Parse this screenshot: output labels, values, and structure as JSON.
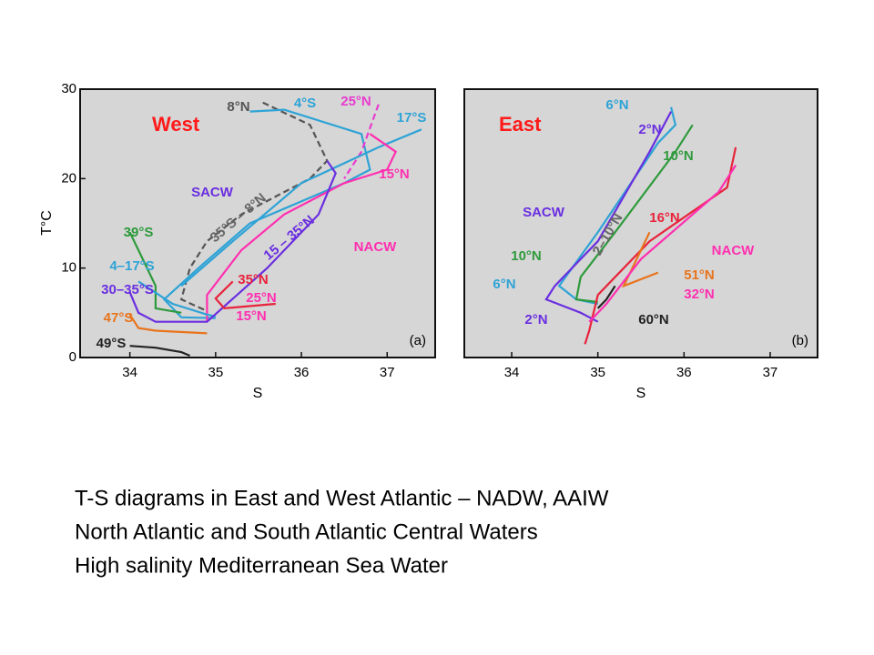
{
  "chart_data": [
    {
      "type": "line",
      "title": "West",
      "x_label": "S",
      "y_label": "T°C",
      "panel_label": "(a)",
      "xlim": [
        33.42,
        37.56
      ],
      "ylim": [
        0,
        30
      ],
      "xticks": [
        34,
        35,
        36,
        37
      ],
      "yticks": [
        0,
        10,
        20,
        30
      ],
      "series": [
        {
          "name": "8°N",
          "color": "#555555",
          "style": "dashed",
          "x": [
            35.55,
            36.1,
            36.3,
            36.1,
            35.3,
            34.9,
            34.7,
            34.6,
            34.9
          ],
          "values": [
            28.5,
            26,
            22,
            20,
            16,
            13,
            10,
            6.5,
            5.2
          ]
        },
        {
          "name": "4°S",
          "color": "#2ea3d6",
          "style": "solid",
          "x": [
            35.4,
            35.8,
            36.7,
            36.8,
            36.5,
            35.4,
            34.8,
            34.4,
            34.6,
            35.0
          ],
          "values": [
            27.5,
            27.7,
            25,
            21,
            19.5,
            15,
            10,
            6.5,
            4.5,
            4.4
          ]
        },
        {
          "name": "25°N",
          "color": "#e83ccf",
          "style": "dashed",
          "x": [
            36.9,
            36.7,
            36.5
          ],
          "values": [
            28.3,
            23,
            20
          ]
        },
        {
          "name": "17°S",
          "color": "#2ea3d6",
          "style": "solid",
          "x": [
            37.4,
            36.9,
            36.0,
            35.2,
            34.6
          ],
          "values": [
            25.5,
            23.5,
            19.5,
            13,
            8
          ]
        },
        {
          "name": "15°N",
          "color": "#ff2fb0",
          "style": "solid",
          "x": [
            36.8,
            37.1,
            37.0,
            36.5,
            35.8,
            35.3,
            34.9,
            34.9
          ],
          "values": [
            25,
            23,
            21,
            19.5,
            16,
            12,
            7,
            4
          ]
        },
        {
          "name": "39°S",
          "color": "#2e9a3c",
          "style": "solid",
          "x": [
            34.0,
            34.1,
            34.3,
            34.3,
            34.6
          ],
          "values": [
            14,
            12,
            8,
            5.5,
            5
          ]
        },
        {
          "name": "4–17°S",
          "color": "#2ea3d6",
          "style": "solid",
          "x": [
            34.1,
            34.5,
            34.9,
            35.0
          ],
          "values": [
            8.5,
            6,
            4.8,
            4.6
          ]
        },
        {
          "name": "30–35°S",
          "color": "#6a2ee0",
          "style": "solid",
          "x": [
            34.0,
            34.1,
            34.3,
            34.9,
            35.6,
            36.2,
            36.4,
            36.3
          ],
          "values": [
            7.3,
            5,
            4,
            4,
            10,
            16,
            20.6,
            22
          ]
        },
        {
          "name": "47°S",
          "color": "#e8741c",
          "style": "solid",
          "x": [
            34.0,
            34.1,
            34.3,
            34.9
          ],
          "values": [
            4.8,
            3.3,
            3,
            2.7
          ]
        },
        {
          "name": "49°S",
          "color": "#222222",
          "style": "solid",
          "x": [
            34.0,
            34.3,
            34.6,
            34.7
          ],
          "values": [
            1.3,
            1.1,
            0.6,
            0.2
          ]
        },
        {
          "name": "35°N",
          "color": "#e8233b",
          "style": "solid",
          "x": [
            35.2,
            35.0,
            35.1,
            35.7
          ],
          "values": [
            8.5,
            6.6,
            5.5,
            6
          ]
        }
      ],
      "annotations": [
        "SACW",
        "NACW",
        "35°S – 8°N",
        "15 – 35°N",
        "25°N",
        "15°N"
      ]
    },
    {
      "type": "line",
      "title": "East",
      "x_label": "S",
      "panel_label": "(b)",
      "xlim": [
        33.45,
        37.55
      ],
      "ylim": [
        0,
        30
      ],
      "xticks": [
        34,
        35,
        36,
        37
      ],
      "series": [
        {
          "name": "6°N",
          "color": "#2ea3d6",
          "style": "solid",
          "x": [
            35.85,
            35.9,
            35.7,
            35.0,
            34.7,
            34.55,
            34.75,
            35.0
          ],
          "values": [
            28,
            26,
            24,
            14,
            10,
            8,
            6.5,
            6
          ]
        },
        {
          "name": "2°N",
          "color": "#6a2ee0",
          "style": "solid",
          "x": [
            35.85,
            35.6,
            35.0,
            34.5,
            34.4,
            34.8,
            35.0
          ],
          "values": [
            27.5,
            23,
            13,
            8,
            6.5,
            5,
            4
          ]
        },
        {
          "name": "10°N",
          "color": "#2e9a3c",
          "style": "solid",
          "x": [
            36.1,
            35.9,
            35.2,
            34.8,
            34.75,
            35.0
          ],
          "values": [
            26,
            23,
            14,
            9,
            6.5,
            6.2
          ]
        },
        {
          "name": "16°N",
          "color": "#e8233b",
          "style": "solid",
          "x": [
            36.6,
            36.5,
            35.6,
            35.0,
            34.9,
            34.85
          ],
          "values": [
            23.5,
            19,
            13,
            7,
            3,
            1.5
          ]
        },
        {
          "name": "51°N",
          "color": "#e8741c",
          "style": "solid",
          "x": [
            35.6,
            35.5,
            35.3,
            35.7
          ],
          "values": [
            14,
            12,
            8,
            9.5
          ]
        },
        {
          "name": "32°N",
          "color": "#ff2fb0",
          "style": "solid",
          "x": [
            36.6,
            36.4,
            35.5,
            35.1,
            34.9
          ],
          "values": [
            21.5,
            18.5,
            11,
            6,
            4
          ]
        },
        {
          "name": "60°N",
          "color": "#222222",
          "style": "solid",
          "x": [
            35.2,
            35.1,
            35.0
          ],
          "values": [
            8,
            6.5,
            5.5
          ]
        }
      ],
      "annotations": [
        "SACW",
        "NACW",
        "2–10°N",
        "10°N",
        "6°N",
        "2°N"
      ]
    }
  ],
  "caption": [
    "T-S diagrams in East and West Atlantic – NADW, AAIW",
    "North Atlantic and South Atlantic Central Waters",
    "High salinity Mediterranean Sea Water"
  ]
}
